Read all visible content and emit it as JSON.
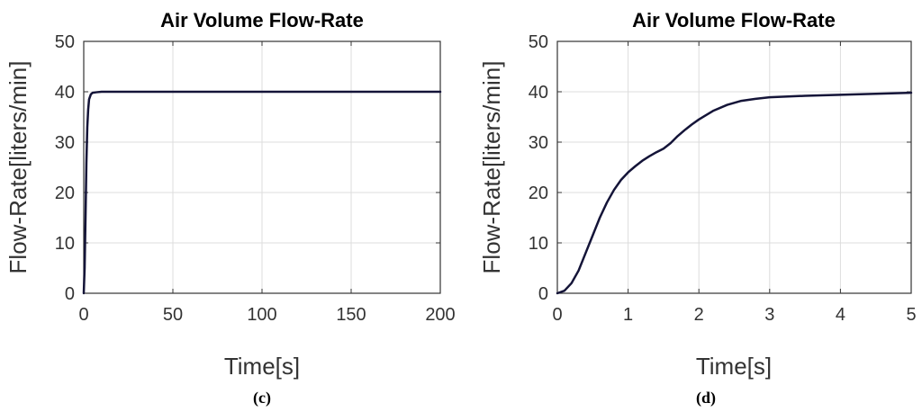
{
  "chart_data": [
    {
      "type": "line",
      "title": "Air Volume Flow-Rate",
      "xlabel": "Time[s]",
      "ylabel": "Flow-Rate[liters/min]",
      "xlim": [
        0,
        200
      ],
      "ylim": [
        0,
        50
      ],
      "xticks": [
        0,
        50,
        100,
        150,
        200
      ],
      "yticks": [
        0,
        10,
        20,
        30,
        40,
        50
      ],
      "grid": true,
      "panel": "(c)",
      "series": [
        {
          "color": "#141438",
          "x": [
            0,
            0.5,
            1,
            1.5,
            2,
            2.5,
            3,
            4,
            5,
            7,
            10,
            20,
            50,
            100,
            150,
            200
          ],
          "y": [
            0,
            5,
            15,
            26,
            33,
            36.5,
            38.5,
            39.5,
            39.8,
            39.9,
            40,
            40,
            40,
            40,
            40,
            40
          ]
        }
      ]
    },
    {
      "type": "line",
      "title": "Air Volume Flow-Rate",
      "xlabel": "Time[s]",
      "ylabel": "Flow-Rate[liters/min]",
      "xlim": [
        0,
        5
      ],
      "ylim": [
        0,
        50
      ],
      "xticks": [
        0,
        1,
        2,
        3,
        4,
        5
      ],
      "yticks": [
        0,
        10,
        20,
        30,
        40,
        50
      ],
      "grid": true,
      "panel": "(d)",
      "series": [
        {
          "color": "#141438",
          "x": [
            0,
            0.1,
            0.2,
            0.3,
            0.4,
            0.5,
            0.6,
            0.7,
            0.8,
            0.9,
            1.0,
            1.1,
            1.2,
            1.3,
            1.4,
            1.5,
            1.6,
            1.7,
            1.8,
            1.9,
            2.0,
            2.2,
            2.4,
            2.6,
            2.8,
            3.0,
            3.5,
            4.0,
            4.5,
            5.0
          ],
          "y": [
            0,
            0.5,
            2,
            4.5,
            8,
            11.5,
            15,
            18,
            20.5,
            22.5,
            24,
            25.2,
            26.3,
            27.2,
            28,
            28.7,
            29.8,
            31.2,
            32.4,
            33.5,
            34.5,
            36.2,
            37.4,
            38.2,
            38.6,
            38.9,
            39.2,
            39.4,
            39.6,
            39.8
          ]
        }
      ]
    }
  ]
}
